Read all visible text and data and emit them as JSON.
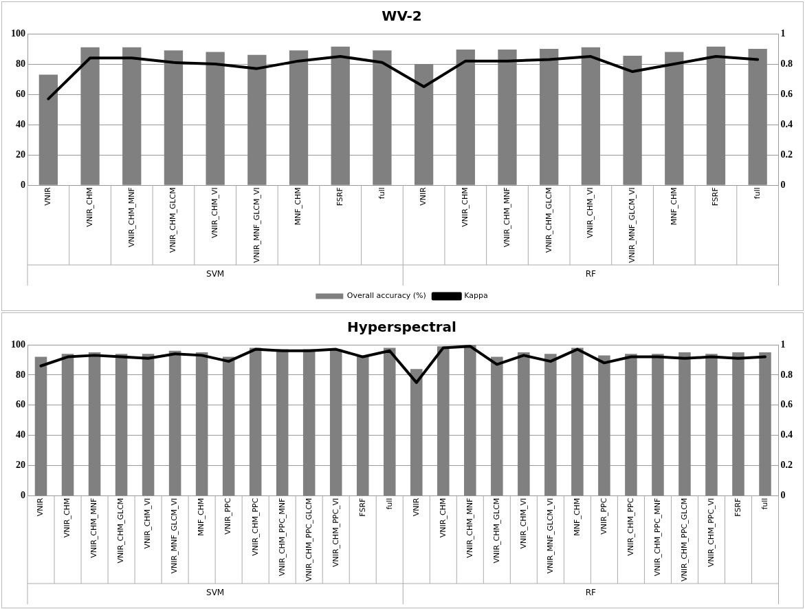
{
  "chart_data": [
    {
      "type": "bar",
      "title": "WV-2",
      "categories": [
        "VNIR",
        "VNIR_CHM",
        "VNIR_CHM_MNF",
        "VNIR_CHM_GLCM",
        "VNIR_CHM_VI",
        "VNIR_MNF_GLCM_VI",
        "MNF_CHM",
        "FSRF",
        "full",
        "VNIR",
        "VNIR_CHM",
        "VNIR_CHM_MNF",
        "VNIR_CHM_GLCM",
        "VNIR_CHM_VI",
        "VNIR_MNF_GLCM_VI",
        "MNF_CHM",
        "FSRF",
        "full"
      ],
      "series": [
        {
          "name": "Overall accuracy (%)",
          "color": "#808080",
          "values": [
            73,
            91,
            91,
            89,
            88,
            86,
            89,
            91.5,
            89,
            80,
            89.5,
            89.5,
            90,
            91,
            85.5,
            88,
            91.5,
            90
          ]
        },
        {
          "name": "Kappa",
          "type": "line",
          "axis": "y2",
          "color": "#000000",
          "values": [
            0.57,
            0.84,
            0.84,
            0.81,
            0.8,
            0.77,
            0.82,
            0.85,
            0.81,
            0.65,
            0.82,
            0.82,
            0.83,
            0.85,
            0.75,
            0.8,
            0.85,
            0.83
          ]
        }
      ],
      "ylim": [
        0,
        100
      ],
      "yticks": [
        0,
        20,
        40,
        60,
        80,
        100
      ],
      "y2lim": [
        0,
        1
      ],
      "y2ticks": [
        0,
        0.2,
        0.4,
        0.6,
        0.8,
        1
      ],
      "grid": "y",
      "legend": "bottom",
      "marker": "none",
      "annotations": [
        "SVM",
        "RF"
      ]
    },
    {
      "type": "bar",
      "title": "Hyperspectral",
      "categories": [
        "VNIR",
        "VNIR_CHM",
        "VNIR_CHM_MNF",
        "VNIR_CHM_GLCM",
        "VNIR_CHM_VI",
        "VNIR_MNF_GLCM_VI",
        "MNF_CHM",
        "VNIR_PPC",
        "VNIR_CHM_PPC",
        "VNIR_CHM_PPC_MNF",
        "VNIR_CHM_PPC_GLCM",
        "VNIR_CHM_PPC_VI",
        "FSRF",
        "full",
        "VNIR",
        "VNIR_CHM",
        "VNIR_CHM_MNF",
        "VNIR_CHM_GLCM",
        "VNIR_CHM_VI",
        "VNIR_MNF_GLCM_VI",
        "MNF_CHM",
        "VNIR_PPC",
        "VNIR_CHM_PPC",
        "VNIR_CHM_PPC_MNF",
        "VNIR_CHM_PPC_GLCM",
        "VNIR_CHM_PPC_VI",
        "FSRF",
        "full"
      ],
      "series": [
        {
          "color": "#808080",
          "values": [
            92,
            94,
            95,
            94,
            94,
            96,
            95,
            92,
            98,
            97,
            97,
            97,
            93,
            98,
            84,
            99,
            100,
            92,
            95,
            94,
            98,
            93,
            94,
            94,
            95,
            94,
            95,
            95
          ]
        },
        {
          "type": "line",
          "axis": "y2",
          "color": "#000000",
          "values": [
            0.86,
            0.92,
            0.93,
            0.92,
            0.91,
            0.94,
            0.93,
            0.89,
            0.97,
            0.96,
            0.96,
            0.97,
            0.92,
            0.96,
            0.75,
            0.98,
            0.99,
            0.87,
            0.93,
            0.89,
            0.97,
            0.88,
            0.92,
            0.92,
            0.91,
            0.92,
            0.91,
            0.92
          ]
        }
      ],
      "ylim": [
        0,
        100
      ],
      "yticks": [
        0,
        20,
        40,
        60,
        80,
        100
      ],
      "y2lim": [
        0,
        1
      ],
      "y2ticks": [
        0,
        0.2,
        0.4,
        0.6,
        0.8,
        1
      ],
      "grid": "y",
      "marker": "none",
      "annotations": [
        "SVM",
        "RF"
      ]
    }
  ]
}
